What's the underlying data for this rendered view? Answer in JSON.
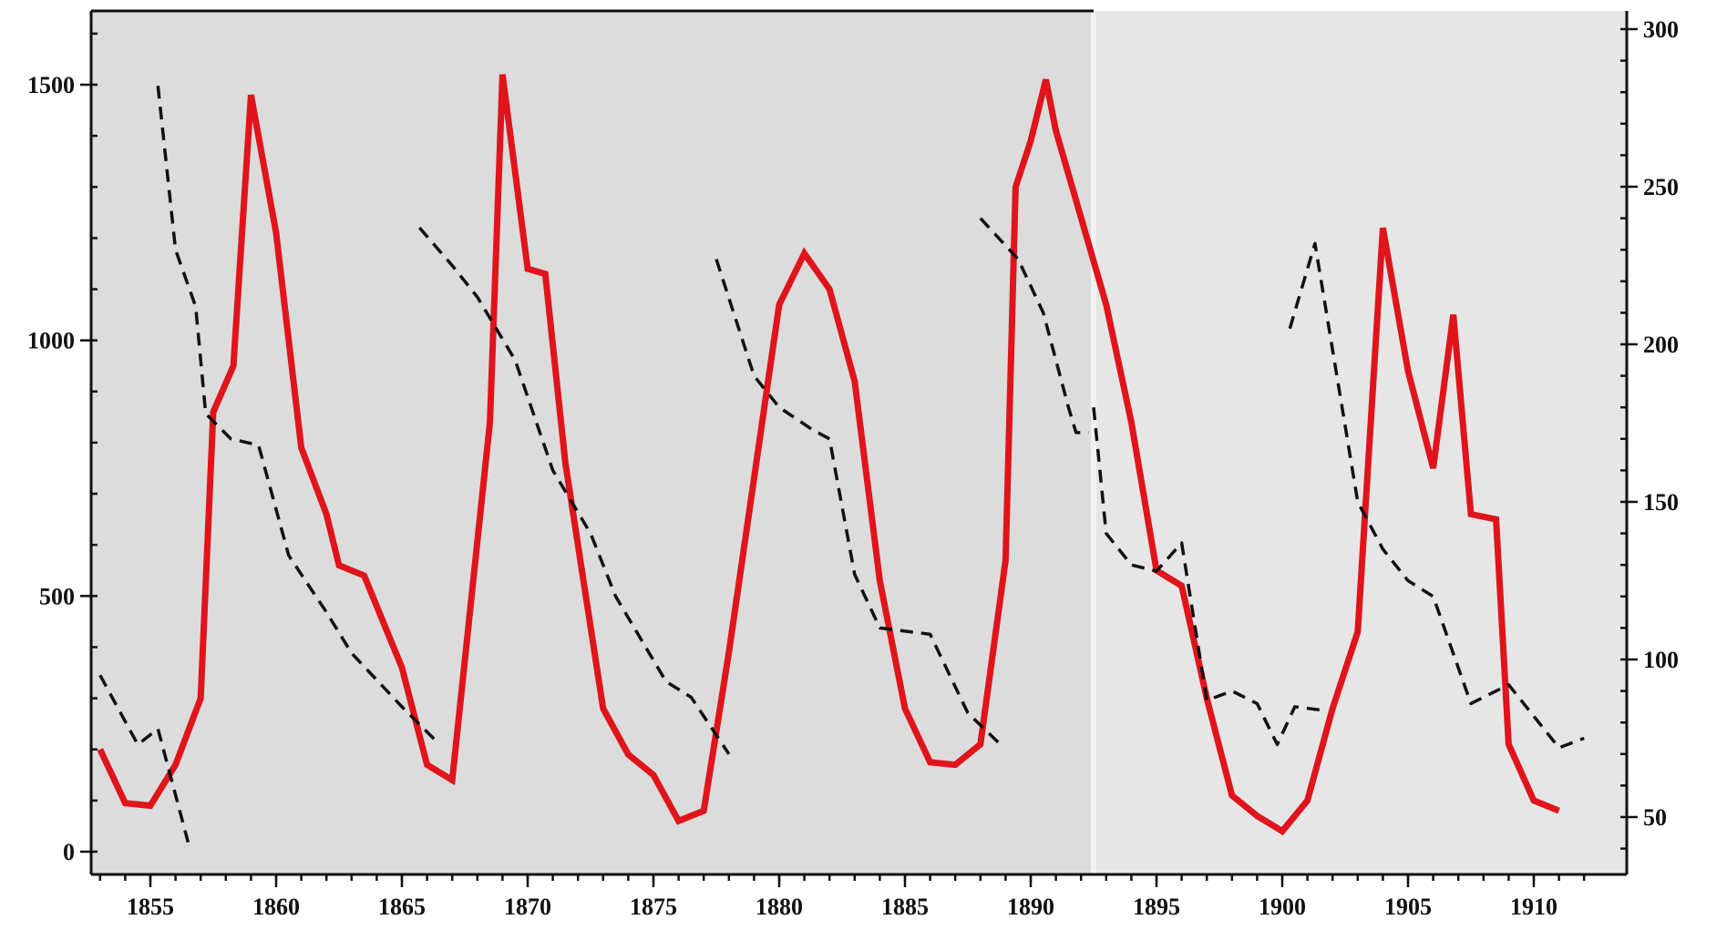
{
  "chart_data": {
    "type": "line",
    "title": "",
    "xlabel": "",
    "ylabel": "",
    "y2label": "",
    "xlim": [
      1853,
      1912
    ],
    "ylim": [
      -50,
      1650
    ],
    "y2lim": [
      32,
      303
    ],
    "grid": false,
    "legend": "none",
    "x_ticks": [
      "1855",
      "1860",
      "1865",
      "1870",
      "1875",
      "1880",
      "1885",
      "1890",
      "1895",
      "1900",
      "1905",
      "1910"
    ],
    "y_ticks": [
      "0",
      "500",
      "1000",
      "1500"
    ],
    "y2_ticks": [
      "50",
      "100",
      "150",
      "200",
      "250",
      "300"
    ],
    "background_colors": {
      "left_panel": "#dcdcdc",
      "right_panel": "#e6e6e6",
      "figure": "#ffffff"
    },
    "series": [
      {
        "axis": "left",
        "color": "#e0141b",
        "style": "solid",
        "points": [
          [
            1853,
            200
          ],
          [
            1854,
            95
          ],
          [
            1855,
            90
          ],
          [
            1856,
            170
          ],
          [
            1857,
            300
          ],
          [
            1857.5,
            860
          ],
          [
            1858.3,
            950
          ],
          [
            1859,
            1480
          ],
          [
            1860,
            1210
          ],
          [
            1861,
            790
          ],
          [
            1862,
            660
          ],
          [
            1862.5,
            560
          ],
          [
            1863.5,
            540
          ],
          [
            1865,
            360
          ],
          [
            1866,
            170
          ],
          [
            1867,
            140
          ],
          [
            1868.5,
            840
          ],
          [
            1869,
            1520
          ],
          [
            1870,
            1140
          ],
          [
            1870.7,
            1130
          ],
          [
            1871.5,
            760
          ],
          [
            1873,
            280
          ],
          [
            1874,
            190
          ],
          [
            1875,
            150
          ],
          [
            1876,
            60
          ],
          [
            1877,
            80
          ],
          [
            1878,
            390
          ],
          [
            1879,
            730
          ],
          [
            1880,
            1070
          ],
          [
            1881,
            1170
          ],
          [
            1882,
            1100
          ],
          [
            1883,
            920
          ],
          [
            1884,
            530
          ],
          [
            1885,
            280
          ],
          [
            1886,
            175
          ],
          [
            1887,
            170
          ],
          [
            1888,
            210
          ],
          [
            1889,
            570
          ],
          [
            1889.4,
            1300
          ],
          [
            1890,
            1390
          ],
          [
            1890.6,
            1510
          ],
          [
            1891,
            1410
          ],
          [
            1892,
            1240
          ],
          [
            1893,
            1070
          ],
          [
            1894,
            840
          ],
          [
            1895,
            550
          ],
          [
            1896,
            520
          ],
          [
            1897,
            300
          ],
          [
            1898,
            110
          ],
          [
            1899,
            70
          ],
          [
            1900,
            40
          ],
          [
            1901,
            100
          ],
          [
            1902,
            280
          ],
          [
            1903,
            430
          ],
          [
            1904,
            1220
          ],
          [
            1905,
            940
          ],
          [
            1906,
            750
          ],
          [
            1906.8,
            1050
          ],
          [
            1907.5,
            660
          ],
          [
            1908.5,
            650
          ],
          [
            1909,
            210
          ],
          [
            1910,
            100
          ],
          [
            1911,
            80
          ]
        ]
      },
      {
        "axis": "right",
        "color": "#111111",
        "style": "dashed",
        "segments": [
          [
            [
              1853,
              95
            ],
            [
              1854.5,
              73
            ],
            [
              1855.3,
              78
            ],
            [
              1856.5,
              42
            ]
          ],
          [
            [
              1855.3,
              282
            ],
            [
              1856,
              230
            ],
            [
              1856.8,
              212
            ],
            [
              1857.2,
              178
            ],
            [
              1858.2,
              170
            ],
            [
              1859.3,
              168
            ],
            [
              1860.5,
              133
            ],
            [
              1862,
              115
            ],
            [
              1863,
              102
            ],
            [
              1865,
              85
            ],
            [
              1866.5,
              73
            ]
          ],
          [
            [
              1865.7,
              237
            ],
            [
              1867,
              225
            ],
            [
              1868,
              215
            ],
            [
              1869.5,
              195
            ],
            [
              1871,
              160
            ],
            [
              1872.5,
              140
            ],
            [
              1873.5,
              120
            ],
            [
              1875.5,
              93
            ],
            [
              1876.5,
              88
            ],
            [
              1878,
              70
            ]
          ],
          [
            [
              1877.5,
              227
            ],
            [
              1879,
              190
            ],
            [
              1880,
              180
            ],
            [
              1881.3,
              173
            ],
            [
              1882,
              170
            ],
            [
              1883,
              127
            ],
            [
              1884,
              110
            ],
            [
              1886,
              108
            ],
            [
              1887.5,
              83
            ],
            [
              1888.8,
              73
            ]
          ],
          [
            [
              1888,
              240
            ],
            [
              1889.5,
              227
            ],
            [
              1890.5,
              210
            ],
            [
              1891.5,
              180
            ],
            [
              1891.8,
              172
            ],
            [
              1892.3,
              172
            ]
          ],
          [
            [
              1892.5,
              180
            ],
            [
              1893,
              140
            ],
            [
              1894,
              130
            ],
            [
              1895,
              128
            ],
            [
              1896,
              137
            ],
            [
              1897,
              87
            ],
            [
              1898,
              90
            ],
            [
              1899,
              86
            ],
            [
              1899.8,
              73
            ],
            [
              1900.5,
              85
            ],
            [
              1901.5,
              84
            ]
          ],
          [
            [
              1900.3,
              205
            ],
            [
              1901.3,
              232
            ],
            [
              1903,
              150
            ],
            [
              1904,
              135
            ],
            [
              1905,
              125
            ],
            [
              1906,
              120
            ],
            [
              1907.5,
              86
            ],
            [
              1909,
              92
            ],
            [
              1910,
              82
            ],
            [
              1911,
              72
            ],
            [
              1912,
              75
            ]
          ]
        ]
      }
    ]
  }
}
